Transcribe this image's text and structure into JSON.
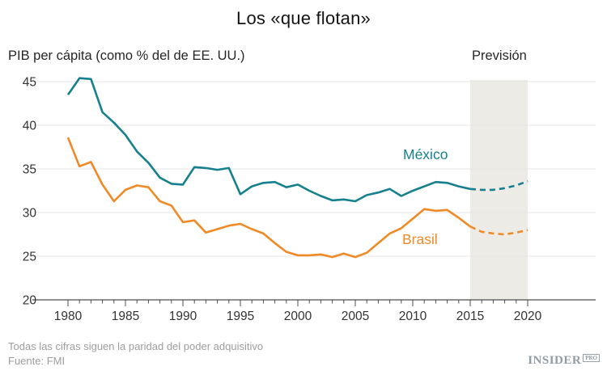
{
  "title": "Los «que flotan»",
  "subtitle_left": "PIB per cápita (como % del de EE. UU.)",
  "forecast_label": "Previsión",
  "footer": {
    "note": "Todas las cifras siguen la paridad del poder adquisitivo",
    "source": "Fuente: FMI",
    "brand": "INSIDER",
    "brand_badge": "PRO"
  },
  "colors": {
    "mexico": "#17808e",
    "brasil": "#ef8a27",
    "forecast_band": "#edebe6",
    "gridline": "#e4e4e4",
    "axis": "#4d4d4d",
    "tick_label": "#333333",
    "text_gray": "#9d9d9d"
  },
  "chart_data": {
    "type": "line",
    "title": "Los «que flotan»",
    "ylabel": "PIB per cápita (como % del de EE. UU.)",
    "grid": true,
    "ylim": [
      20,
      46.5
    ],
    "y_ticks": [
      20,
      25,
      30,
      35,
      40,
      45
    ],
    "x_ticks_major": [
      1980,
      1985,
      1990,
      1995,
      2000,
      2005,
      2010,
      2015,
      2020
    ],
    "forecast_start": 2015,
    "forecast_end": 2020,
    "forecast_band_label": "Previsión",
    "x": [
      1980,
      1981,
      1982,
      1983,
      1984,
      1985,
      1986,
      1987,
      1988,
      1989,
      1990,
      1991,
      1992,
      1993,
      1994,
      1995,
      1996,
      1997,
      1998,
      1999,
      2000,
      2001,
      2002,
      2003,
      2004,
      2005,
      2006,
      2007,
      2008,
      2009,
      2010,
      2011,
      2012,
      2013,
      2014,
      2015,
      2016,
      2017,
      2018,
      2019,
      2020
    ],
    "series": [
      {
        "name": "México",
        "color": "#17808e",
        "values": [
          43.5,
          45.4,
          45.3,
          41.5,
          40.3,
          38.9,
          37.0,
          35.7,
          34.0,
          33.3,
          33.2,
          35.2,
          35.1,
          34.9,
          35.1,
          32.1,
          33.0,
          33.4,
          33.5,
          32.9,
          33.2,
          32.5,
          31.9,
          31.4,
          31.5,
          31.3,
          32.0,
          32.3,
          32.7,
          31.9,
          32.5,
          33.0,
          33.5,
          33.4,
          33.0,
          32.7,
          32.6,
          32.6,
          32.8,
          33.1,
          33.6
        ]
      },
      {
        "name": "Brasil",
        "color": "#ef8a27",
        "values": [
          38.6,
          35.3,
          35.8,
          33.2,
          31.3,
          32.6,
          33.1,
          32.9,
          31.3,
          30.8,
          28.9,
          29.1,
          27.7,
          28.1,
          28.5,
          28.7,
          28.1,
          27.6,
          26.5,
          25.5,
          25.1,
          25.1,
          25.2,
          24.9,
          25.3,
          24.9,
          25.4,
          26.5,
          27.6,
          28.2,
          29.3,
          30.4,
          30.2,
          30.3,
          29.4,
          28.4,
          27.8,
          27.6,
          27.5,
          27.7,
          28.0
        ]
      }
    ]
  }
}
